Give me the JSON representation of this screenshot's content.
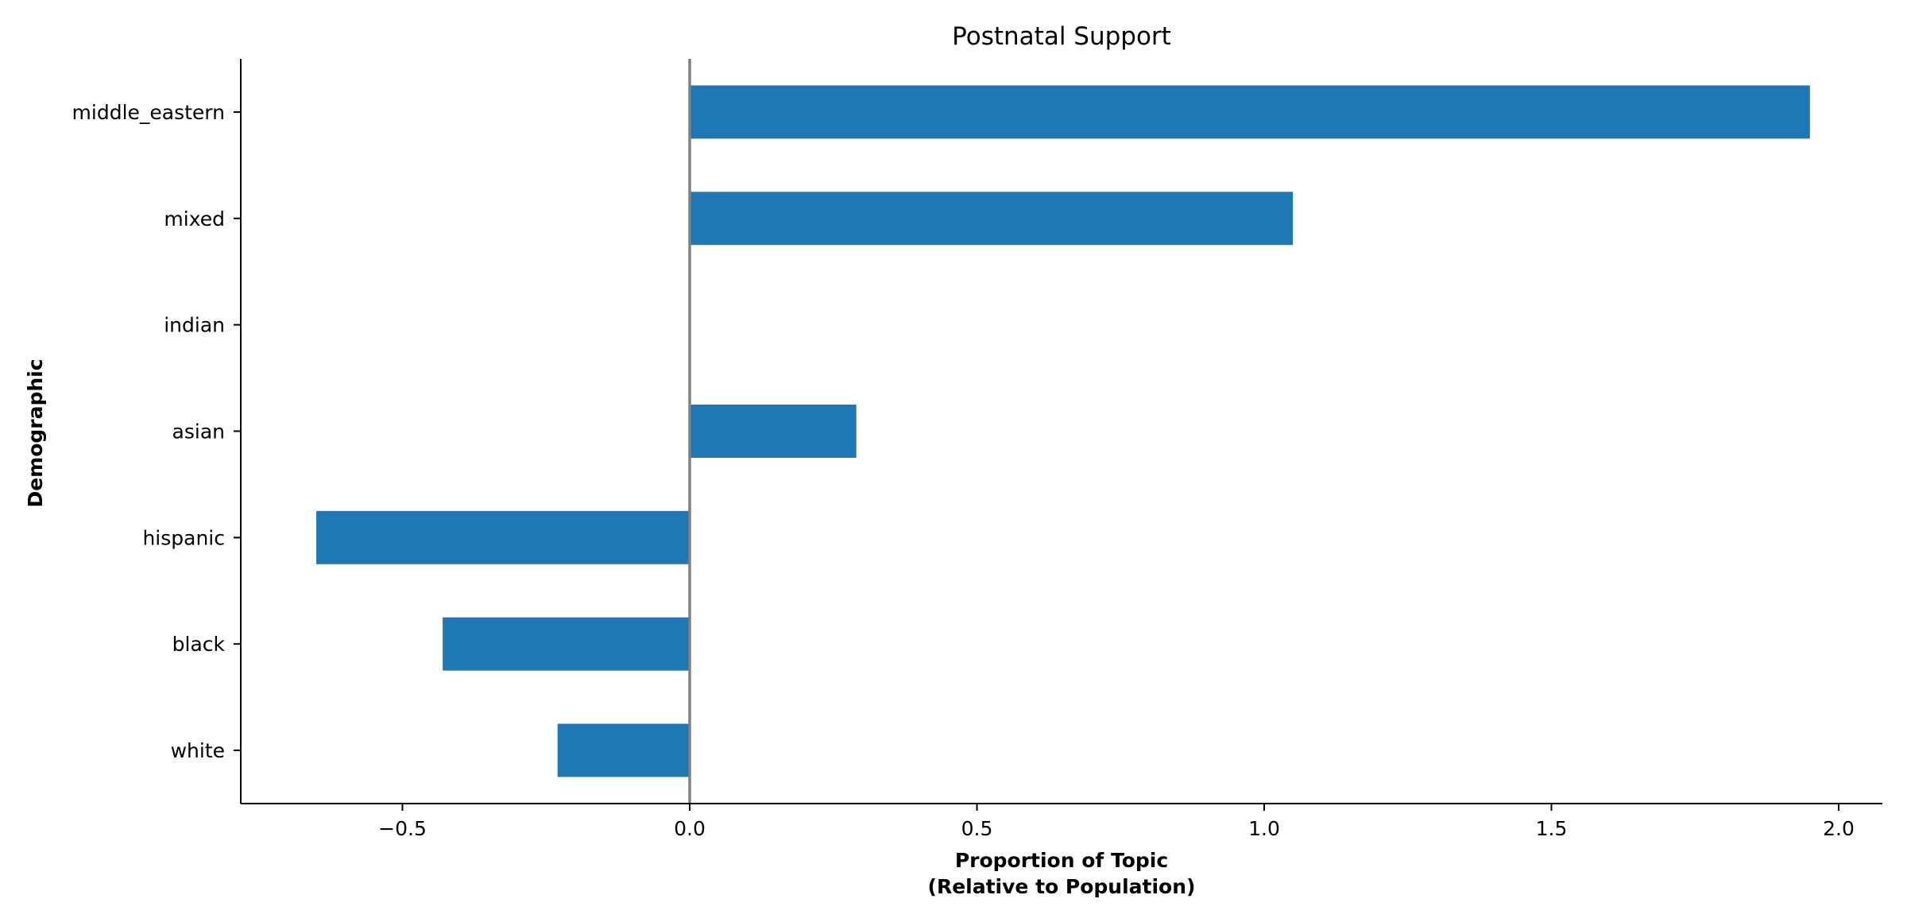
{
  "chart_data": {
    "type": "bar",
    "orientation": "horizontal",
    "title": "Postnatal Support",
    "xlabel_line1": "Proportion of Topic",
    "xlabel_line2": "(Relative to Population)",
    "ylabel": "Demographic",
    "categories": [
      "white",
      "black",
      "hispanic",
      "asian",
      "indian",
      "mixed",
      "middle_eastern"
    ],
    "values": [
      -0.23,
      -0.43,
      -0.65,
      0.29,
      0.0,
      1.05,
      1.95
    ],
    "xlim": [
      -0.78,
      2.08
    ],
    "xticks": [
      -0.5,
      0.0,
      0.5,
      1.0,
      1.5,
      2.0
    ],
    "xtick_labels": [
      "−0.5",
      "0.0",
      "0.5",
      "1.0",
      "1.5",
      "2.0"
    ],
    "bar_color": "#1f77b4",
    "zero_line_color": "#808080",
    "grid": false,
    "legend": "none"
  }
}
